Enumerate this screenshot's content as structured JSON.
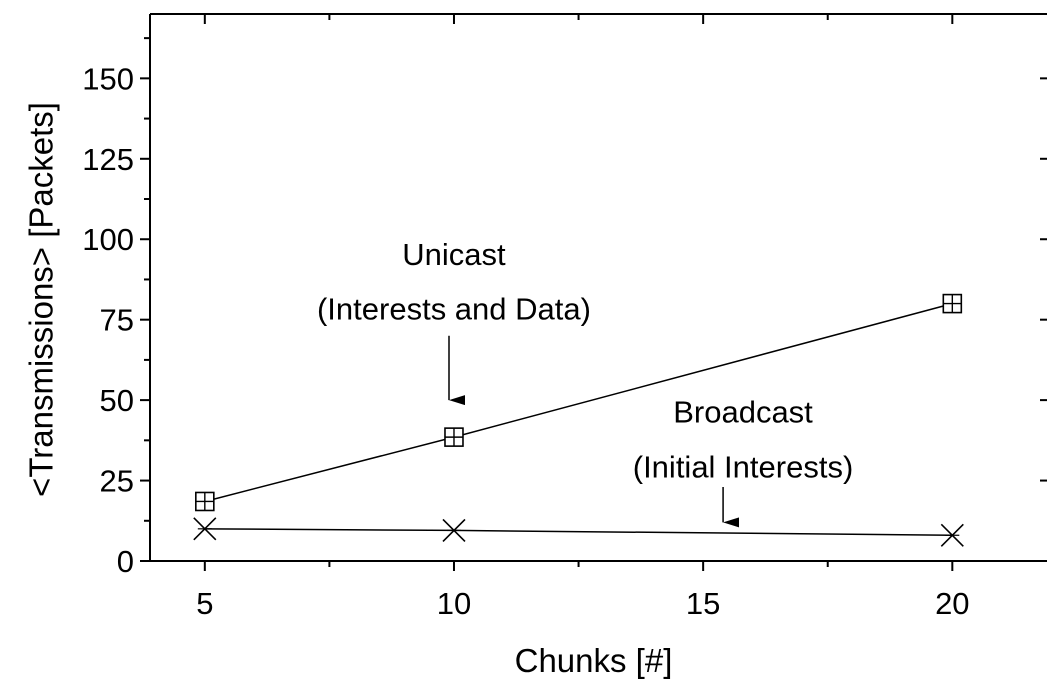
{
  "chart_data": {
    "type": "line",
    "title": "",
    "xlabel": "Chunks [#]",
    "ylabel": "<Transmissions> [Packets]",
    "xlim": [
      3.9,
      21.9
    ],
    "ylim": [
      0,
      170
    ],
    "x_ticks": [
      5,
      10,
      15,
      20
    ],
    "x_tick_labels": [
      "5",
      "10",
      "15",
      "20"
    ],
    "x_minor_ticks": [
      7.5,
      12.5,
      17.5
    ],
    "y_ticks": [
      0,
      25,
      50,
      75,
      100,
      125,
      150
    ],
    "y_tick_labels": [
      "0",
      "25",
      "50",
      "75",
      "100",
      "125",
      "150"
    ],
    "y_minor_ticks": [
      12.5,
      37.5,
      62.5,
      87.5,
      112.5,
      137.5,
      162.5
    ],
    "grid": false,
    "legend": "none",
    "series": [
      {
        "marker": "boxed-plus",
        "color": "#000000",
        "x": [
          5,
          10,
          20
        ],
        "y": [
          18.5,
          38.5,
          80
        ]
      },
      {
        "marker": "x-star",
        "color": "#000000",
        "x": [
          5,
          10,
          20
        ],
        "y": [
          10,
          9.5,
          8
        ]
      }
    ],
    "annotations": [
      {
        "lines": [
          "Unicast",
          "(Interests and Data)"
        ],
        "center_x": 10,
        "line_y": [
          92,
          75
        ],
        "arrow_from": [
          9.9,
          70
        ],
        "arrow_to": [
          9.9,
          50
        ]
      },
      {
        "lines": [
          "Broadcast",
          "(Initial Interests)"
        ],
        "center_x": 15.8,
        "line_y": [
          43,
          26
        ],
        "arrow_from": [
          15.4,
          23
        ],
        "arrow_to": [
          15.4,
          12
        ]
      }
    ]
  }
}
